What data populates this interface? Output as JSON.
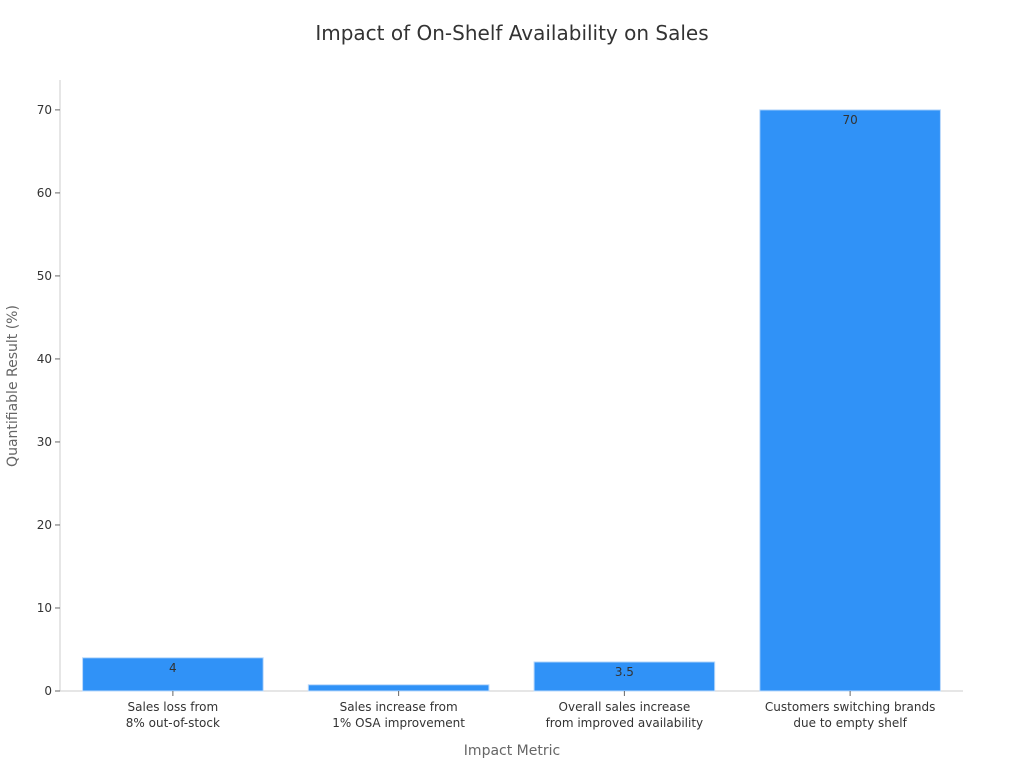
{
  "chart_data": {
    "type": "bar",
    "title": "Impact of On-Shelf Availability on Sales",
    "xlabel": "Impact Metric",
    "ylabel": "Quantifiable Result (%)",
    "categories": [
      "Sales loss from\n8% out-of-stock",
      "Sales increase from\n1% OSA improvement",
      "Overall sales increase\nfrom improved availability",
      "Customers switching brands\ndue to empty shelf"
    ],
    "values": [
      4,
      0.75,
      3.5,
      70
    ],
    "data_labels": [
      "4",
      "",
      "3.5",
      "70"
    ],
    "ylim": [
      0,
      73.6
    ],
    "yticks": [
      0,
      10,
      20,
      30,
      40,
      50,
      60,
      70
    ],
    "grid": false,
    "bar_color": "#3092f7"
  }
}
